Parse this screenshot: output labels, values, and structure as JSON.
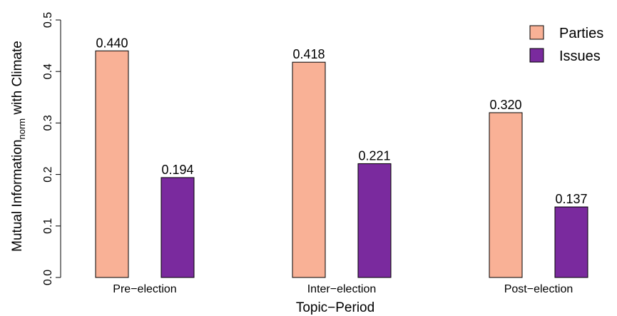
{
  "chart_data": {
    "type": "bar",
    "xlabel": "Topic−Period",
    "ylabel_main": "Mutual Information",
    "ylabel_sub": "norm",
    "ylabel_tail": " with Climate",
    "categories": [
      "Pre−election",
      "Inter−election",
      "Post−election"
    ],
    "series": [
      {
        "name": "Parties",
        "color": "#F9B196",
        "values": [
          0.44,
          0.418,
          0.32
        ],
        "labels": [
          "0.440",
          "0.418",
          "0.320"
        ]
      },
      {
        "name": "Issues",
        "color": "#7A2A9E",
        "values": [
          0.194,
          0.221,
          0.137
        ],
        "labels": [
          "0.194",
          "0.221",
          "0.137"
        ]
      }
    ],
    "ylim": [
      0,
      0.5
    ],
    "yticks": [
      0.0,
      0.1,
      0.2,
      0.3,
      0.4,
      0.5
    ],
    "ytick_labels": [
      "0.0",
      "0.1",
      "0.2",
      "0.3",
      "0.4",
      "0.5"
    ],
    "legend_position": "top-right",
    "grid": false
  }
}
